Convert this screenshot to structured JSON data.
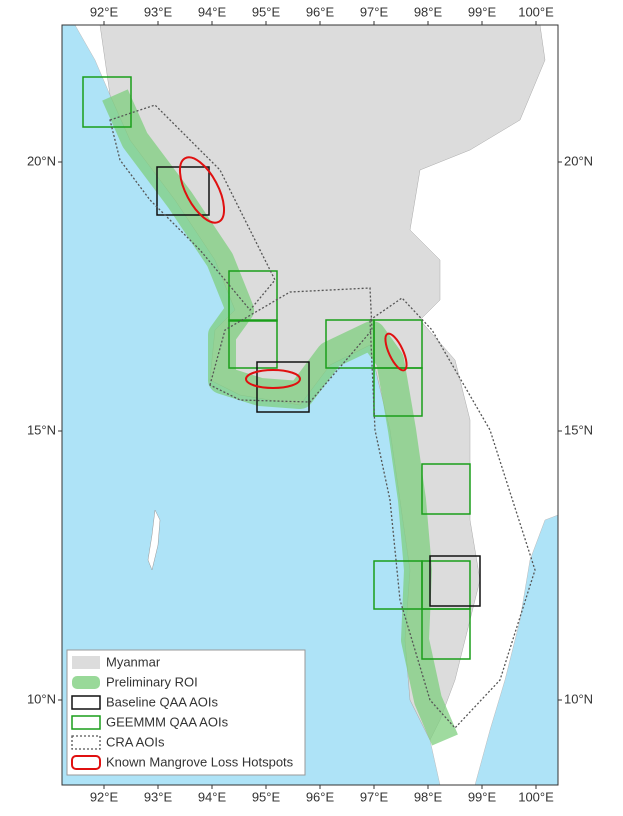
{
  "map": {
    "longitude_ticks": [
      {
        "value": 92,
        "label": "92°E"
      },
      {
        "value": 93,
        "label": "93°E"
      },
      {
        "value": 94,
        "label": "94°E"
      },
      {
        "value": 95,
        "label": "95°E"
      },
      {
        "value": 96,
        "label": "96°E"
      },
      {
        "value": 97,
        "label": "97°E"
      },
      {
        "value": 98,
        "label": "98°E"
      },
      {
        "value": 99,
        "label": "99°E"
      },
      {
        "value": 100,
        "label": "100°E"
      }
    ],
    "latitude_ticks": [
      {
        "value": 20,
        "label": "20°N"
      },
      {
        "value": 15,
        "label": "15°N"
      },
      {
        "value": 10,
        "label": "10°N"
      }
    ],
    "legend": [
      "Myanmar",
      "Preliminary ROI",
      "Baseline QAA AOIs",
      "GEEMMM QAA AOIs",
      "CRA AOIs",
      "Known Mangrove Loss Hotspots"
    ]
  }
}
